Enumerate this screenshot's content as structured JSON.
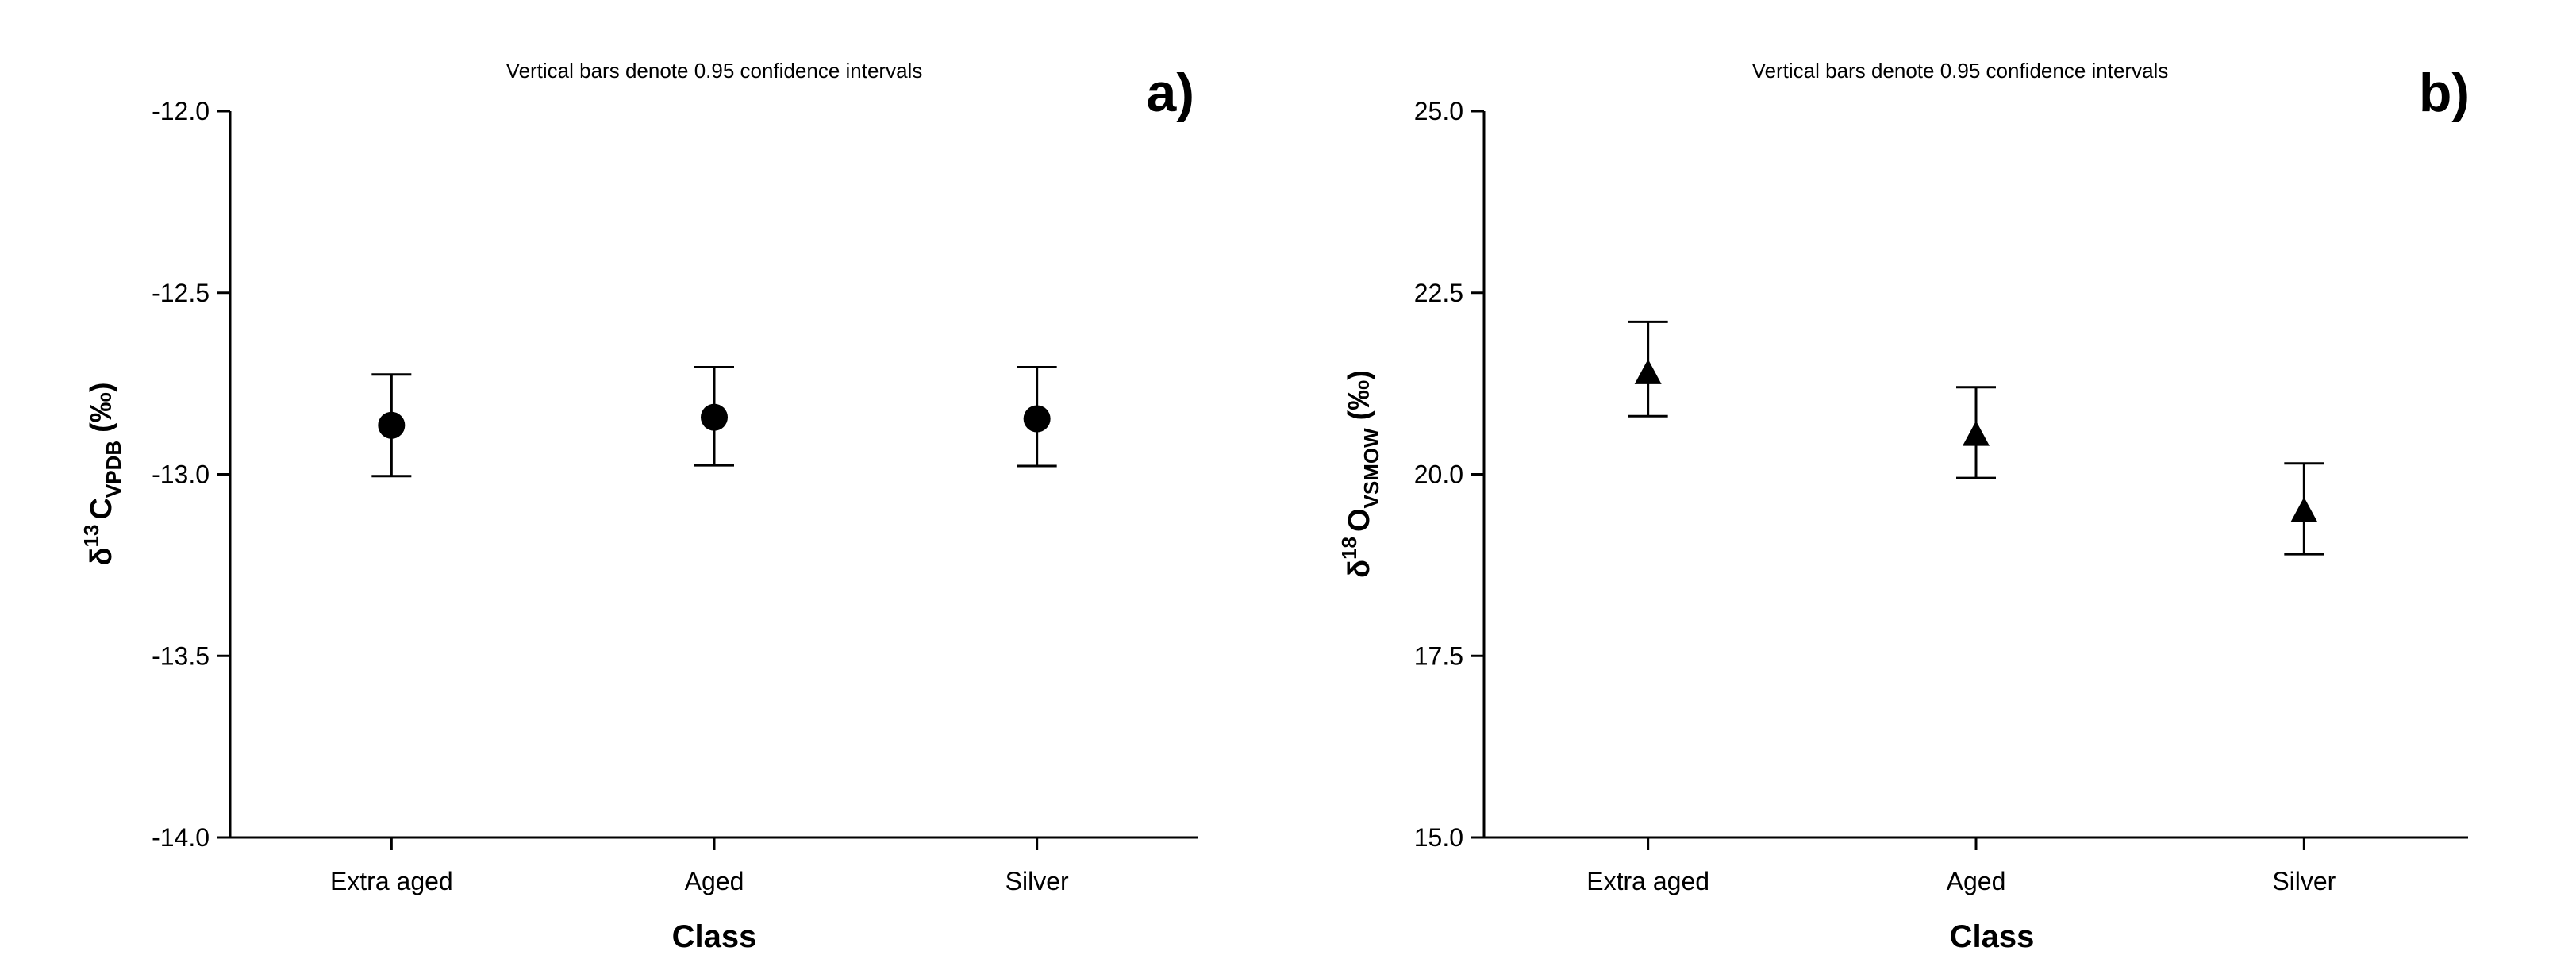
{
  "chart_data": [
    {
      "panel": "a)",
      "type": "scatter",
      "marker": "circle",
      "note": "Vertical bars denote 0.95 confidence intervals",
      "categories": [
        "Extra aged",
        "Aged",
        "Silver"
      ],
      "values": [
        -12.865,
        -12.843,
        -12.847
      ],
      "ci_lower": [
        -13.005,
        -12.975,
        -12.977
      ],
      "ci_upper": [
        -12.725,
        -12.705,
        -12.705
      ],
      "xlabel": "Class",
      "ylabel": {
        "symbol": "δ",
        "isotope": "13",
        "element": "C",
        "subscript": "VPDB",
        "unit": "(‰)"
      },
      "ylim": [
        -14.0,
        -12.0
      ],
      "yticks": [
        "-12.0",
        "-12.5",
        "-13.0",
        "-13.5",
        "-14.0"
      ],
      "grid": false
    },
    {
      "panel": "b)",
      "type": "scatter",
      "marker": "triangle",
      "note": "Vertical bars denote 0.95 confidence intervals",
      "categories": [
        "Extra aged",
        "Aged",
        "Silver"
      ],
      "values": [
        21.4,
        20.55,
        19.5
      ],
      "ci_lower": [
        20.8,
        19.95,
        18.9
      ],
      "ci_upper": [
        22.1,
        21.2,
        20.15
      ],
      "xlabel": "Class",
      "ylabel": {
        "symbol": "δ",
        "isotope": "18",
        "element": "O",
        "subscript": "VSMOW",
        "unit": "(‰)"
      },
      "ylim": [
        15.0,
        25.0
      ],
      "yticks": [
        "25.0",
        "22.5",
        "20.0",
        "17.5",
        "15.0"
      ],
      "grid": false
    }
  ]
}
